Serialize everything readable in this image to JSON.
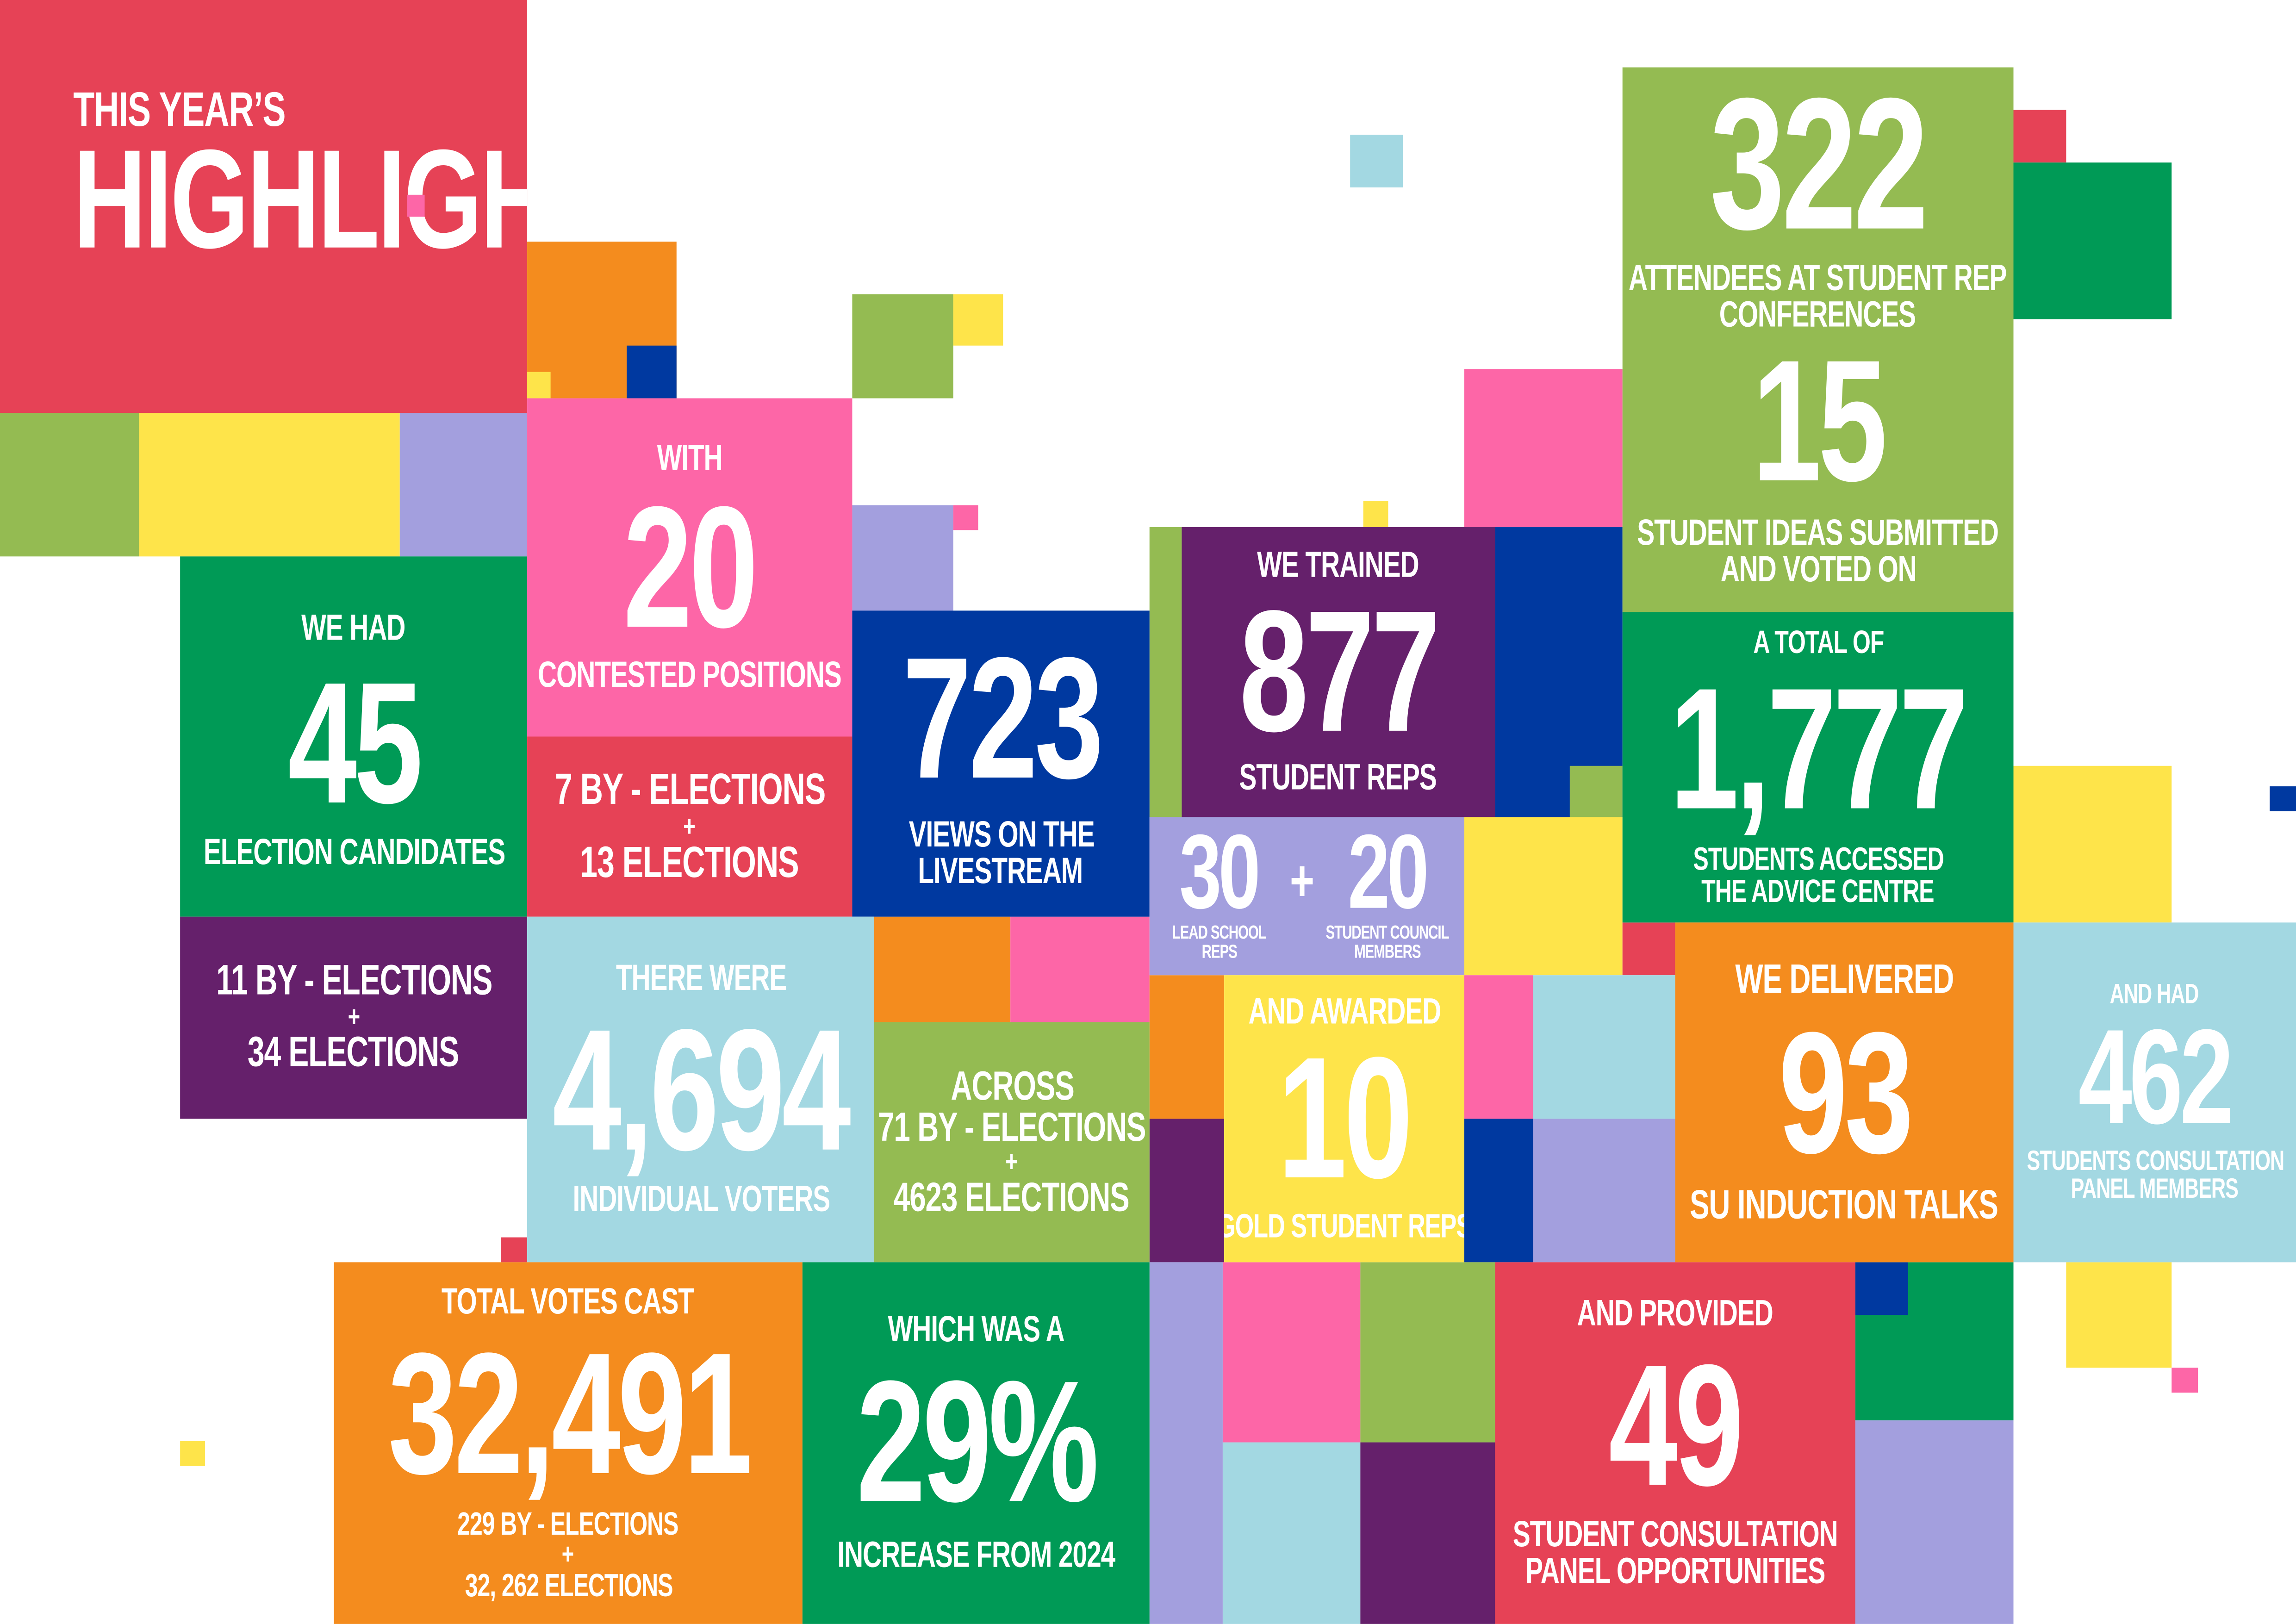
{
  "header": {
    "pre": "THIS YEAR’S",
    "title": "HIGHLIGHTS"
  },
  "candidates": {
    "intro": "WE HAD",
    "number": "45",
    "label": "ELECTION CANDIDATES"
  },
  "candidates_split": {
    "line1": "11 BY - ELECTIONS",
    "plus": "+",
    "line2": "34 ELECTIONS"
  },
  "positions": {
    "intro": "WITH",
    "number": "20",
    "label": "CONTESTED POSITIONS"
  },
  "positions_split": {
    "line1": "7 BY - ELECTIONS",
    "plus": "+",
    "line2": "13 ELECTIONS"
  },
  "livestream": {
    "number": "723",
    "label_line1": "VIEWS ON THE",
    "label_line2": "LIVESTREAM"
  },
  "voters": {
    "intro": "THERE WERE",
    "number": "4,694",
    "label": "INDIVIDUAL VOTERS"
  },
  "voters_split": {
    "line1": "ACROSS",
    "line2": "71 BY - ELECTIONS",
    "plus": "+",
    "line3": "4623 ELECTIONS"
  },
  "trained": {
    "intro": "WE TRAINED",
    "number": "877",
    "label": "STUDENT REPS"
  },
  "trained_split": {
    "left_number": "30",
    "plus": "+",
    "right_number": "20",
    "left_line1": "LEAD SCHOOL",
    "left_line2": "REPS",
    "right_line1": "STUDENT COUNCIL",
    "right_line2": "MEMBERS"
  },
  "gold": {
    "intro": "AND AWARDED",
    "number": "10",
    "label": "GOLD STUDENT REPS"
  },
  "conferences": {
    "number": "322",
    "label_line1": "ATTENDEES AT STUDENT REP",
    "label_line2": "CONFERENCES"
  },
  "ideas": {
    "number": "15",
    "label_line1": "STUDENT IDEAS SUBMITTED",
    "label_line2": "AND VOTED ON"
  },
  "advice": {
    "intro": "A TOTAL OF",
    "number": "1,777",
    "label_line1": "STUDENTS ACCESSED",
    "label_line2": "THE ADVICE CENTRE"
  },
  "induction": {
    "intro": "WE DELIVERED",
    "number": "93",
    "label": "SU INDUCTION TALKS"
  },
  "panel": {
    "intro": "AND HAD",
    "number": "462",
    "label_line1": "STUDENTS CONSULTATION",
    "label_line2": "PANEL MEMBERS"
  },
  "votes": {
    "intro": "TOTAL VOTES CAST",
    "number": "32,491",
    "line1": "229 BY - ELECTIONS",
    "plus": "+",
    "line2": "32, 262 ELECTIONS"
  },
  "increase": {
    "intro": "WHICH WAS A",
    "number": "29%",
    "label": "INCREASE FROM 2024"
  },
  "opportunities": {
    "intro": "AND PROVIDED",
    "number": "49",
    "label_line1": "STUDENT CONSULTATION",
    "label_line2": "PANEL OPPORTUNITIES"
  },
  "colors": {
    "red": "#e64256",
    "orange": "#f48c1e",
    "green": "#009a56",
    "light_green": "#94bb52",
    "yellow": "#fee44a",
    "pink": "#fd66a7",
    "lavender": "#a39fde",
    "light_blue": "#a3d8e2",
    "dark_blue": "#0039a0",
    "purple": "#65206b"
  }
}
